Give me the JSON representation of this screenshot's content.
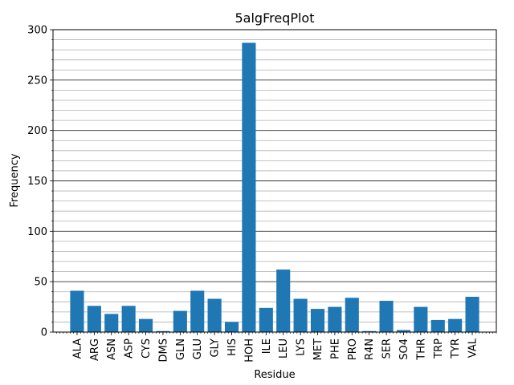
{
  "chart_data": {
    "type": "bar",
    "title": "5algFreqPlot",
    "xlabel": "Residue",
    "ylabel": "Frequency",
    "categories": [
      "ALA",
      "ARG",
      "ASN",
      "ASP",
      "CYS",
      "DMS",
      "GLN",
      "GLU",
      "GLY",
      "HIS",
      "HOH",
      "ILE",
      "LEU",
      "LYS",
      "MET",
      "PHE",
      "PRO",
      "R4N",
      "SER",
      "SO4",
      "THR",
      "TRP",
      "TYR",
      "VAL"
    ],
    "values": [
      41,
      26,
      18,
      26,
      13,
      1,
      21,
      41,
      33,
      10,
      287,
      24,
      62,
      33,
      23,
      25,
      34,
      1,
      31,
      2,
      25,
      12,
      13,
      35
    ],
    "ylim": [
      0,
      300
    ],
    "yticks": [
      0,
      50,
      100,
      150,
      200,
      250,
      300
    ],
    "grid": "major and minor horizontal",
    "bar_color": "#1f77b4"
  }
}
